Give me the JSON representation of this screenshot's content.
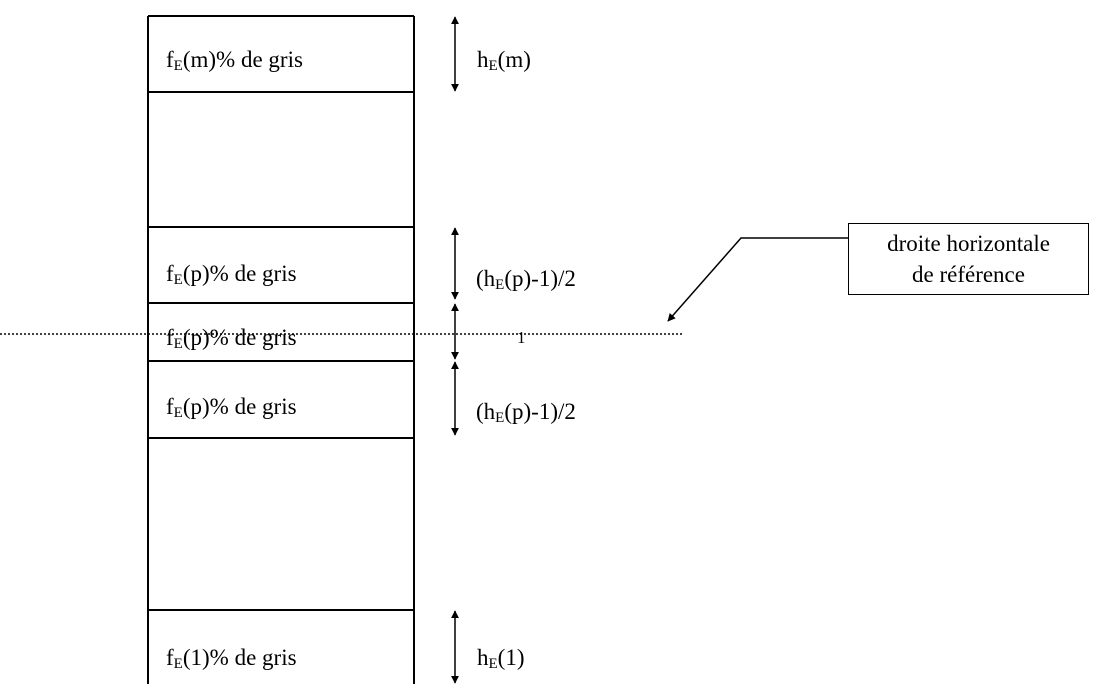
{
  "colors": {
    "ink": "#000000",
    "background": "#ffffff"
  },
  "blocks": {
    "top": {
      "f_prefix": "f",
      "sub": "E",
      "f_arg": "(m)% de gris",
      "h_prefix": "h",
      "h_arg": "(m)"
    },
    "upper_p": {
      "f_prefix": "f",
      "sub": "E",
      "f_arg": "(p)% de gris",
      "h_prefix": "(h",
      "h_arg": "(p)-1)/2"
    },
    "middle_p": {
      "f_prefix": "f",
      "sub": "E",
      "f_arg": "(p)% de gris",
      "h_value": "1"
    },
    "lower_p": {
      "f_prefix": "f",
      "sub": "E",
      "f_arg": "(p)% de gris",
      "h_prefix": "(h",
      "h_arg": "(p)-1)/2"
    },
    "bottom": {
      "f_prefix": "f",
      "sub": "E",
      "f_arg": "(1)% de gris",
      "h_prefix": "h",
      "h_arg": "(1)"
    }
  },
  "reference_box": {
    "line1": "droite horizontale",
    "line2": "de référence"
  }
}
